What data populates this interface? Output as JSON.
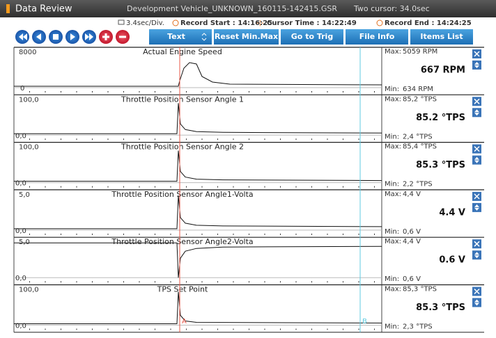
{
  "title_bar": {
    "app": "Data Review",
    "file": "Development Vehicle_UNKNOWN_160115-142415.GSR",
    "cursor_mode": "Two cursor: 34.0sec"
  },
  "info_bar": {
    "scale": "3.4sec/Div.",
    "record_start": "Record Start : 14:16:25",
    "cursor_time": "Cursor Time : 14:22:49",
    "record_end": "Record End : 14:24:25"
  },
  "toolbar": {
    "buttons": [
      "Text",
      "Reset Min.Max",
      "Go to Trig",
      "File Info",
      "Items List"
    ]
  },
  "labels": {
    "max": "Max:",
    "min": "Min:"
  },
  "cursors": [
    "A",
    "B"
  ],
  "panels": [
    {
      "name": "Actual Engine Speed",
      "top": "8000",
      "bottom": "0",
      "max": "5059 RPM",
      "current": "667 RPM",
      "min": "634 RPM"
    },
    {
      "name": "Throttle Position Sensor Angle 1",
      "top": "100,0",
      "bottom": "0,0",
      "max": "85,2 °TPS",
      "current": "85.2 °TPS",
      "min": "2,4 °TPS"
    },
    {
      "name": "Throttle Position Sensor Angle 2",
      "top": "100,0",
      "bottom": "0,0",
      "max": "85,4 °TPS",
      "current": "85.3 °TPS",
      "min": "2,2 °TPS"
    },
    {
      "name": "Throttle Position Sensor Angle1-Volta",
      "top": "5,0",
      "bottom": "0,0",
      "max": "4,4 V",
      "current": "4.4 V",
      "min": "0,6 V"
    },
    {
      "name": "Throttle Position Sensor Angle2-Volta",
      "top": "5,0",
      "bottom": "0,0",
      "max": "4,4 V",
      "current": "0.6 V",
      "min": "0,6 V"
    },
    {
      "name": "TPS Set Point",
      "top": "100,0",
      "bottom": "0,0",
      "max": "85,3 °TPS",
      "current": "85.3 °TPS",
      "min": "2,3 °TPS"
    }
  ]
}
